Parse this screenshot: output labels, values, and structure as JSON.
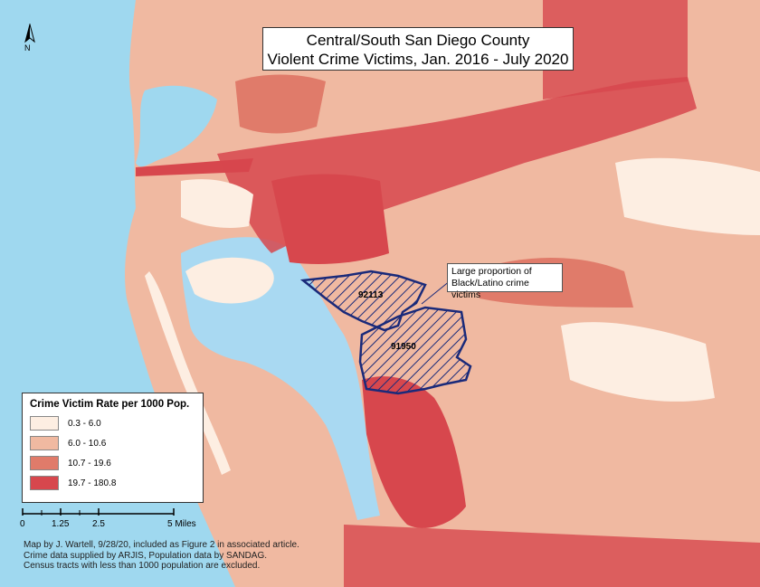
{
  "title": {
    "line1": "Central/South San Diego County",
    "line2": "Violent Crime Victims, Jan. 2016 - July 2020"
  },
  "callout": {
    "line1": "Large proportion of",
    "line2": "Black/Latino crime victims"
  },
  "zip_labels": [
    "92113",
    "91950"
  ],
  "legend": {
    "title": "Crime Victim Rate per 1000 Pop.",
    "classes": [
      {
        "range": "0.3 - 6.0",
        "color": "#fdeee2"
      },
      {
        "range": "6.0 - 10.6",
        "color": "#f0b9a1"
      },
      {
        "range": "10.7 - 19.6",
        "color": "#e07b6a"
      },
      {
        "range": "19.7 - 180.8",
        "color": "#d7474d"
      }
    ]
  },
  "scale_bar": {
    "ticks": [
      "0",
      "1.25",
      "2.5",
      "5 Miles"
    ]
  },
  "north_arrow": {
    "label": "N",
    "icon": "north-arrow-icon"
  },
  "credits": [
    "Map by J. Wartell, 9/28/20, included as Figure 2 in associated article.",
    "Crime data supplied by ARJIS, Population data by SANDAG.",
    "Census tracts with less than 1000 population are excluded."
  ],
  "colors": {
    "water": "#9fd8ef",
    "bay": "#a9d9f2",
    "highlight_outline": "#1a2a7a",
    "highlight_hatch": "#1a2a7a"
  }
}
